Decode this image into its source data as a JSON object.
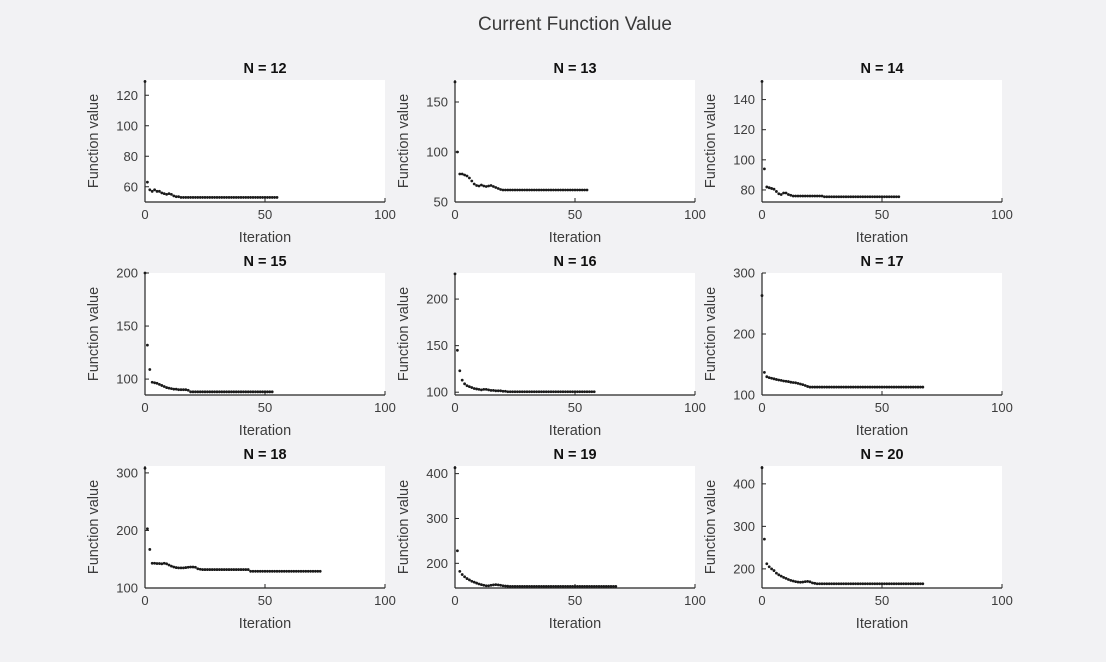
{
  "figure": {
    "title": "Current Function Value"
  },
  "colors": {
    "background": "#f2f2f4",
    "plot_bg": "#ffffff",
    "axis": "#252525",
    "tick_text": "#3c3c3c",
    "title_text": "#3a3a3a",
    "marker": "#1a1a1a"
  },
  "chart_data": [
    {
      "type": "scatter",
      "title": "N = 12",
      "xlabel": "Iteration",
      "ylabel": "Function value",
      "xlim": [
        0,
        100
      ],
      "xticks": [
        0,
        50,
        100
      ],
      "ylim": [
        50,
        130
      ],
      "yticks": [
        60,
        80,
        100,
        120
      ],
      "legend": "none",
      "grid": false,
      "y_values": [
        129,
        63,
        58,
        57,
        58,
        57,
        57,
        56,
        55.5,
        55,
        55.5,
        55,
        54,
        53.5,
        53.5,
        53,
        53,
        53,
        53,
        53,
        53,
        53,
        53,
        53,
        53,
        53,
        53,
        53,
        53,
        53,
        53,
        53,
        53,
        53,
        53,
        53,
        53,
        53,
        53,
        53,
        53,
        53,
        53,
        53,
        53,
        53,
        53,
        53,
        53,
        53,
        53,
        53,
        53,
        53,
        53,
        53
      ]
    },
    {
      "type": "scatter",
      "title": "N = 13",
      "xlabel": "Iteration",
      "ylabel": "Function value",
      "xlim": [
        0,
        100
      ],
      "xticks": [
        0,
        50,
        100
      ],
      "ylim": [
        50,
        172
      ],
      "yticks": [
        50,
        100,
        150
      ],
      "legend": "none",
      "grid": false,
      "y_values": [
        170,
        100,
        78,
        78,
        77,
        76,
        74,
        71,
        68,
        66.5,
        66,
        67,
        66,
        65.5,
        66,
        66.5,
        65.5,
        64.5,
        63.5,
        62.5,
        62,
        62,
        62,
        62,
        62,
        62,
        62,
        62,
        62,
        62,
        62,
        62,
        62,
        62,
        62,
        62,
        62,
        62,
        62,
        62,
        62,
        62,
        62,
        62,
        62,
        62,
        62,
        62,
        62,
        62,
        62,
        62,
        62,
        62,
        62,
        62
      ]
    },
    {
      "type": "scatter",
      "title": "N = 14",
      "xlabel": "Iteration",
      "ylabel": "Function value",
      "xlim": [
        0,
        100
      ],
      "xticks": [
        0,
        50,
        100
      ],
      "ylim": [
        72,
        153
      ],
      "yticks": [
        80,
        100,
        120,
        140
      ],
      "legend": "none",
      "grid": false,
      "y_values": [
        152,
        94,
        82,
        81.5,
        81,
        80.5,
        79,
        77.5,
        77,
        78,
        78,
        77,
        76.5,
        76,
        76,
        76,
        76,
        76,
        76,
        76,
        76,
        76,
        76,
        76,
        76,
        76,
        75.5,
        75.5,
        75.5,
        75.5,
        75.5,
        75.5,
        75.5,
        75.5,
        75.5,
        75.5,
        75.5,
        75.5,
        75.5,
        75.5,
        75.5,
        75.5,
        75.5,
        75.5,
        75.5,
        75.5,
        75.5,
        75.5,
        75.5,
        75.5,
        75.5,
        75.5,
        75.5,
        75.5,
        75.5,
        75.5,
        75.5,
        75.5
      ]
    },
    {
      "type": "scatter",
      "title": "N = 15",
      "xlabel": "Iteration",
      "ylabel": "Function value",
      "xlim": [
        0,
        100
      ],
      "xticks": [
        0,
        50,
        100
      ],
      "ylim": [
        85,
        200
      ],
      "yticks": [
        100,
        150,
        200
      ],
      "legend": "none",
      "grid": false,
      "y_values": [
        200,
        132,
        109,
        97,
        96.5,
        96,
        95,
        94,
        93,
        92,
        91.5,
        91,
        90.5,
        90.5,
        90,
        90,
        90,
        90,
        89.5,
        88,
        88,
        88,
        88,
        88,
        88,
        88,
        88,
        88,
        88,
        88,
        88,
        88,
        88,
        88,
        88,
        88,
        88,
        88,
        88,
        88,
        88,
        88,
        88,
        88,
        88,
        88,
        88,
        88,
        88,
        88,
        88,
        88,
        88,
        88
      ]
    },
    {
      "type": "scatter",
      "title": "N = 16",
      "xlabel": "Iteration",
      "ylabel": "Function value",
      "xlim": [
        0,
        100
      ],
      "xticks": [
        0,
        50,
        100
      ],
      "ylim": [
        97,
        228
      ],
      "yticks": [
        100,
        150,
        200
      ],
      "legend": "none",
      "grid": false,
      "y_values": [
        227,
        145,
        123,
        113,
        109,
        107,
        106,
        105,
        104,
        103.5,
        103,
        102.5,
        103,
        103,
        102.5,
        102,
        102,
        101.5,
        101.5,
        101.5,
        101,
        101,
        100.5,
        100.5,
        100.5,
        100.5,
        100.5,
        100.5,
        100.5,
        100.5,
        100.5,
        100.5,
        100.5,
        100.5,
        100.5,
        100.5,
        100.5,
        100.5,
        100.5,
        100.5,
        100.5,
        100.5,
        100.5,
        100.5,
        100.5,
        100.5,
        100.5,
        100.5,
        100.5,
        100.5,
        100.5,
        100.5,
        100.5,
        100.5,
        100.5,
        100.5,
        100.5,
        100.5,
        100.5
      ]
    },
    {
      "type": "scatter",
      "title": "N = 17",
      "xlabel": "Iteration",
      "ylabel": "Function value",
      "xlim": [
        0,
        100
      ],
      "xticks": [
        0,
        50,
        100
      ],
      "ylim": [
        100,
        300
      ],
      "yticks": [
        100,
        200,
        300
      ],
      "legend": "none",
      "grid": false,
      "y_values": [
        263,
        137,
        130,
        128.5,
        127.5,
        126.5,
        125.5,
        124.5,
        124,
        123,
        122.5,
        122,
        121,
        120.5,
        120,
        119,
        118,
        117,
        115.5,
        114,
        113,
        113,
        113,
        113,
        113,
        113,
        113,
        113,
        113,
        113,
        113,
        113,
        113,
        113,
        113,
        113,
        113,
        113,
        113,
        113,
        113,
        113,
        113,
        113,
        113,
        113,
        113,
        113,
        113,
        113,
        113,
        113,
        113,
        113,
        113,
        113,
        113,
        113,
        113,
        113,
        113,
        113,
        113,
        113,
        113,
        113,
        113,
        113
      ]
    },
    {
      "type": "scatter",
      "title": "N = 18",
      "xlabel": "Iteration",
      "ylabel": "Function value",
      "xlim": [
        0,
        100
      ],
      "xticks": [
        0,
        50,
        100
      ],
      "ylim": [
        100,
        312
      ],
      "yticks": [
        100,
        200,
        300
      ],
      "legend": "none",
      "grid": false,
      "y_values": [
        308,
        203,
        167,
        143,
        143,
        142.5,
        142.5,
        142,
        143,
        142,
        140,
        138,
        136.5,
        135.5,
        135,
        135,
        135,
        135.5,
        136,
        136.5,
        136.5,
        136,
        133.5,
        132.5,
        132,
        132,
        132,
        132,
        132,
        132,
        132,
        132,
        132,
        132,
        132,
        132,
        132,
        132,
        132,
        132,
        132,
        132,
        132,
        132,
        129,
        129,
        129,
        129,
        129,
        129,
        129,
        129,
        129,
        129,
        129,
        129,
        129,
        129,
        129,
        129,
        129,
        129,
        129,
        129,
        129,
        129,
        129,
        129,
        129,
        129,
        129,
        129,
        129,
        129
      ]
    },
    {
      "type": "scatter",
      "title": "N = 19",
      "xlabel": "Iteration",
      "ylabel": "Function value",
      "xlim": [
        0,
        100
      ],
      "xticks": [
        0,
        50,
        100
      ],
      "ylim": [
        145,
        417
      ],
      "yticks": [
        200,
        300,
        400
      ],
      "legend": "none",
      "grid": false,
      "y_values": [
        413,
        228,
        182,
        175,
        170,
        166,
        163,
        160,
        158,
        156,
        154,
        152.5,
        151,
        150,
        150,
        151,
        152,
        152.5,
        152,
        151,
        150,
        149.5,
        149,
        148.5,
        148.5,
        148.5,
        148.5,
        148.5,
        148.5,
        148.5,
        148.5,
        148.5,
        148.5,
        148.5,
        148.5,
        148.5,
        148.5,
        148.5,
        148.5,
        148.5,
        148.5,
        148.5,
        148.5,
        148.5,
        148.5,
        148.5,
        148.5,
        148.5,
        148.5,
        148.5,
        148.5,
        148.5,
        148.5,
        148.5,
        148.5,
        148.5,
        148.5,
        148.5,
        148.5,
        148.5,
        148.5,
        148.5,
        148.5,
        148.5,
        148.5,
        148.5,
        148.5,
        148.5
      ]
    },
    {
      "type": "scatter",
      "title": "N = 20",
      "xlabel": "Iteration",
      "ylabel": "Function value",
      "xlim": [
        0,
        100
      ],
      "xticks": [
        0,
        50,
        100
      ],
      "ylim": [
        155,
        442
      ],
      "yticks": [
        200,
        300,
        400
      ],
      "legend": "none",
      "grid": false,
      "y_values": [
        438,
        270,
        212,
        205,
        200,
        196,
        190,
        186,
        183,
        180,
        177.5,
        175,
        173,
        171.5,
        170,
        169,
        168.5,
        169,
        170,
        170.5,
        169.5,
        167,
        166,
        165,
        165,
        165,
        165,
        165,
        165,
        165,
        165,
        165,
        165,
        165,
        165,
        165,
        165,
        165,
        165,
        165,
        165,
        165,
        165,
        165,
        165,
        165,
        165,
        165,
        165,
        165,
        165,
        165,
        165,
        165,
        165,
        165,
        165,
        165,
        165,
        165,
        165,
        165,
        165,
        165,
        165,
        165,
        165,
        165
      ]
    }
  ]
}
